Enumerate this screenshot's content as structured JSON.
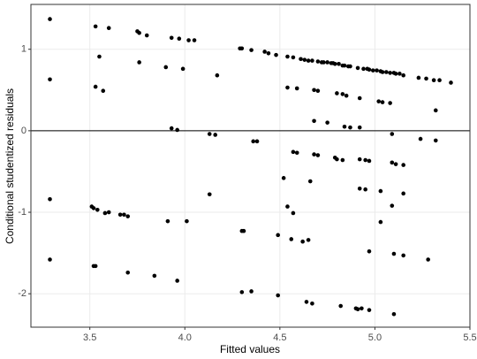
{
  "chart_data": {
    "type": "scatter",
    "x_label": "Fitted values",
    "y_label": "Conditional studentized residuals",
    "xlim": [
      3.19,
      5.5
    ],
    "ylim": [
      -2.41,
      1.55
    ],
    "xticks": [
      3.5,
      {
        "value": 4,
        "label": "4.0"
      },
      4.5,
      {
        "value": 5,
        "label": "5.0"
      },
      5.5
    ],
    "yticks": [
      -2,
      -1,
      0,
      1
    ],
    "grid": true,
    "hline": 0,
    "color": "#000000",
    "x": [
      3.29,
      3.29,
      3.53,
      3.6,
      3.55,
      3.53,
      3.57,
      3.75,
      3.76,
      3.8,
      3.76,
      3.9,
      3.93,
      3.97,
      4.02,
      4.05,
      3.99,
      4.17,
      3.93,
      3.96,
      4.13,
      4.16,
      4.29,
      4.3,
      4.35,
      4.42,
      4.44,
      4.48,
      4.54,
      4.57,
      4.61,
      4.63,
      4.65,
      4.67,
      4.7,
      4.72,
      4.73,
      4.75,
      4.77,
      4.78,
      4.79,
      4.81,
      4.83,
      4.84,
      4.86,
      4.87,
      4.91,
      4.94,
      4.96,
      4.97,
      4.99,
      5.01,
      5.03,
      5.04,
      5.06,
      5.08,
      5.1,
      5.11,
      5.13,
      5.15,
      5.23,
      5.27,
      5.31,
      5.34,
      5.4,
      4.54,
      4.59,
      4.68,
      4.7,
      4.8,
      4.83,
      4.85,
      4.92,
      5.02,
      5.04,
      5.08,
      5.32,
      4.68,
      4.75,
      4.84,
      4.87,
      4.92,
      5.09,
      5.24,
      5.32,
      4.36,
      4.38,
      4.57,
      4.59,
      4.68,
      4.7,
      4.79,
      4.8,
      4.83,
      4.92,
      4.95,
      4.97,
      5.09,
      5.11,
      5.15,
      4.52,
      4.66,
      4.92,
      4.95,
      5.03,
      5.15,
      3.29,
      4.13,
      3.51,
      3.52,
      3.54,
      3.58,
      3.6,
      3.66,
      3.68,
      3.7,
      3.91,
      4.01,
      4.54,
      4.57,
      5.09,
      4.3,
      4.31,
      4.49,
      4.56,
      4.62,
      4.65,
      5.03,
      3.29,
      3.52,
      3.53,
      3.7,
      3.84,
      3.96,
      4.3,
      4.35,
      4.49,
      4.64,
      4.67,
      4.82,
      4.9,
      4.91,
      4.93,
      4.97,
      5.1,
      4.97,
      5.1,
      5.15,
      5.28
    ],
    "y": [
      1.37,
      0.63,
      1.28,
      1.26,
      0.91,
      0.54,
      0.49,
      1.22,
      1.2,
      1.17,
      0.84,
      0.78,
      1.14,
      1.13,
      1.11,
      1.11,
      0.76,
      0.68,
      0.03,
      0.01,
      -0.04,
      -0.05,
      1.01,
      1.01,
      0.99,
      0.97,
      0.95,
      0.93,
      0.91,
      0.9,
      0.88,
      0.87,
      0.86,
      0.86,
      0.85,
      0.84,
      0.84,
      0.84,
      0.83,
      0.83,
      0.82,
      0.82,
      0.8,
      0.8,
      0.79,
      0.79,
      0.77,
      0.76,
      0.76,
      0.75,
      0.74,
      0.74,
      0.73,
      0.72,
      0.72,
      0.71,
      0.71,
      0.7,
      0.7,
      0.68,
      0.65,
      0.64,
      0.62,
      0.62,
      0.59,
      0.53,
      0.52,
      0.5,
      0.49,
      0.46,
      0.45,
      0.43,
      0.4,
      0.36,
      0.35,
      0.34,
      0.25,
      0.12,
      0.1,
      0.05,
      0.04,
      0.04,
      -0.04,
      -0.1,
      -0.12,
      -0.13,
      -0.13,
      -0.26,
      -0.27,
      -0.29,
      -0.3,
      -0.33,
      -0.35,
      -0.36,
      -0.35,
      -0.36,
      -0.37,
      -0.39,
      -0.41,
      -0.42,
      -0.58,
      -0.62,
      -0.71,
      -0.72,
      -0.74,
      -0.77,
      -0.84,
      -0.78,
      -0.93,
      -0.95,
      -0.97,
      -1.01,
      -1.0,
      -1.03,
      -1.03,
      -1.05,
      -1.11,
      -1.11,
      -0.93,
      -1.01,
      -0.92,
      -1.23,
      -1.23,
      -1.28,
      -1.33,
      -1.36,
      -1.34,
      -1.12,
      -1.58,
      -1.66,
      -1.66,
      -1.74,
      -1.78,
      -1.84,
      -1.98,
      -1.97,
      -2.02,
      -2.1,
      -2.12,
      -2.15,
      -2.18,
      -2.19,
      -2.18,
      -2.2,
      -2.25,
      -1.48,
      -1.51,
      -1.53,
      -1.58
    ]
  }
}
